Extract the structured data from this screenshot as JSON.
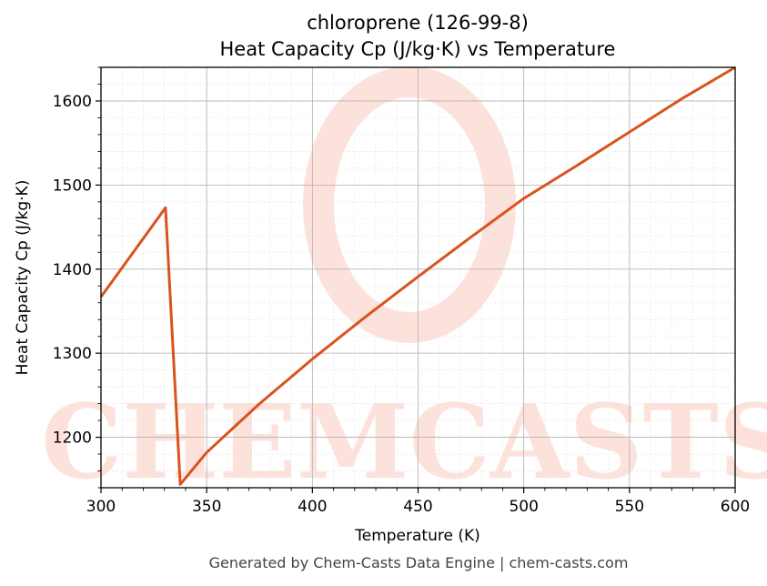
{
  "chart_data": {
    "type": "line",
    "title": "chloroprene (126-99-8)",
    "subtitle": "Heat Capacity Cp (J/kg·K) vs Temperature",
    "xlabel": "Temperature (K)",
    "ylabel": "Heat Capacity Cp (J/kg·K)",
    "xlim": [
      300,
      600
    ],
    "ylim": [
      1140,
      1640
    ],
    "xticks": [
      300,
      350,
      400,
      450,
      500,
      550,
      600
    ],
    "yticks": [
      1200,
      1300,
      1400,
      1500,
      1600
    ],
    "grid": true,
    "series": [
      {
        "color": "#d9531e",
        "x": [
          300,
          330.5,
          337.5,
          350,
          375,
          400,
          425,
          450,
          475,
          500,
          525,
          550,
          575,
          600
        ],
        "y": [
          1367,
          1473,
          1144,
          1182,
          1240,
          1293,
          1343,
          1391,
          1438,
          1484,
          1523,
          1563,
          1603,
          1640
        ]
      }
    ]
  },
  "watermark": "CHEMCASTS",
  "footer": "Generated by Chem-Casts Data Engine | chem-casts.com"
}
